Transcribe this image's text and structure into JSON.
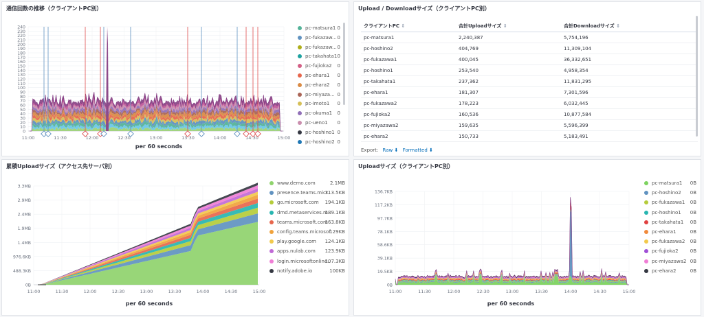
{
  "panels": {
    "comm": {
      "title": "通信回数の推移（クライアントPC別）",
      "xlabel": "per 60 seconds",
      "yticks": [
        "0",
        "10",
        "20",
        "30",
        "40",
        "50",
        "60",
        "70",
        "80",
        "90",
        "100",
        "110",
        "120",
        "130",
        "140",
        "150",
        "160",
        "170",
        "180",
        "190",
        "200",
        "210",
        "220",
        "230",
        "240"
      ],
      "xticks": [
        "11:00",
        "11:30",
        "12:00",
        "12:30",
        "13:00",
        "13:30",
        "14:00",
        "14:30",
        "15:00"
      ],
      "legend": [
        {
          "name": "pc-matsura1",
          "value": "0",
          "color": "#54b399"
        },
        {
          "name": "pc-fukazaw...",
          "value": "0",
          "color": "#6092c0"
        },
        {
          "name": "pc-fukazaw...",
          "value": "0",
          "color": "#aeae19"
        },
        {
          "name": "pc-takahata1",
          "value": "0",
          "color": "#1ea2a0"
        },
        {
          "name": "pc-fujioka2",
          "value": "0",
          "color": "#d36086"
        },
        {
          "name": "pc-ehara1",
          "value": "0",
          "color": "#e7664c"
        },
        {
          "name": "pc-ehara2",
          "value": "0",
          "color": "#da8b45"
        },
        {
          "name": "pc-miyaza...",
          "value": "0",
          "color": "#aa6556"
        },
        {
          "name": "pc-imoto1",
          "value": "0",
          "color": "#d6bf57"
        },
        {
          "name": "pc-okuma1",
          "value": "0",
          "color": "#9170b8"
        },
        {
          "name": "pc-ueno1",
          "value": "0",
          "color": "#ca8eae"
        },
        {
          "name": "pc-hoshino1",
          "value": "0",
          "color": "#343741"
        },
        {
          "name": "pc-hoshino2",
          "value": "0",
          "color": "#1f77b4"
        }
      ]
    },
    "updown": {
      "title": "Upload / Downloadサイズ（クライアントPC別）",
      "columns": [
        "クライアントPC",
        "合計Uploadサイズ",
        "合計Downloadサイズ"
      ],
      "rows": [
        [
          "pc-matsura1",
          "2,240,387",
          "5,754,196"
        ],
        [
          "pc-hoshino2",
          "404,769",
          "11,309,104"
        ],
        [
          "pc-fukazawa1",
          "400,045",
          "36,332,651"
        ],
        [
          "pc-hoshino1",
          "253,540",
          "4,958,354"
        ],
        [
          "pc-takahata1",
          "237,362",
          "11,831,295"
        ],
        [
          "pc-ehara1",
          "181,307",
          "7,301,596"
        ],
        [
          "pc-fukazawa2",
          "178,223",
          "6,032,445"
        ],
        [
          "pc-fujioka2",
          "160,536",
          "10,877,584"
        ],
        [
          "pc-miyazawa2",
          "159,635",
          "5,596,399"
        ],
        [
          "pc-ehara2",
          "150,733",
          "5,183,491"
        ]
      ],
      "export_label": "Export:",
      "raw_label": "Raw",
      "formatted_label": "Formatted"
    },
    "cumul": {
      "title": "累積Uploadサイズ（アクセス先サーバ別）",
      "xlabel": "per 60 seconds",
      "yticks": [
        "0B",
        "488.3KB",
        "976.6KB",
        "1.4MB",
        "1.9MB",
        "2.4MB",
        "2.9MB",
        "3.3MB"
      ],
      "xticks": [
        "11:00",
        "11:30",
        "12:00",
        "12:30",
        "13:00",
        "13:30",
        "14:00",
        "14:30",
        "15:00"
      ],
      "legend": [
        {
          "name": "www.demo.com",
          "value": "2.1MB",
          "color": "#8fd36c"
        },
        {
          "name": "presence.teams.micr...",
          "value": "313.5KB",
          "color": "#6092c0"
        },
        {
          "name": "go.microsoft.com",
          "value": "194.1KB",
          "color": "#b5cc3a"
        },
        {
          "name": "dmd.metaservices.m...",
          "value": "189.1KB",
          "color": "#27b5b0"
        },
        {
          "name": "teams.microsoft.com",
          "value": "163.8KB",
          "color": "#e7664c"
        },
        {
          "name": "config.teams.microsoft...",
          "value": "129KB",
          "color": "#f0a23c"
        },
        {
          "name": "play.google.com",
          "value": "124.1KB",
          "color": "#f2c94c"
        },
        {
          "name": "apps.nulab.com",
          "value": "123.9KB",
          "color": "#c06ad6"
        },
        {
          "name": "login.microsoftonline...",
          "value": "107.3KB",
          "color": "#f07ed6"
        },
        {
          "name": "notify.adobe.io",
          "value": "100KB",
          "color": "#343741"
        }
      ]
    },
    "upload": {
      "title": "Uploadサイズ（クライアントPC別）",
      "xlabel": "per 60 seconds",
      "yticks": [
        "0B",
        "19.5KB",
        "39.1KB",
        "58.6KB",
        "78.1KB",
        "97.7KB",
        "117.2KB",
        "136.7KB"
      ],
      "xticks": [
        "11:00",
        "11:30",
        "12:00",
        "12:30",
        "13:00",
        "13:30",
        "14:00",
        "14:30",
        "15:00"
      ],
      "legend": [
        {
          "name": "pc-matsura1",
          "value": "0B",
          "color": "#7dd35f"
        },
        {
          "name": "pc-hoshino2",
          "value": "0B",
          "color": "#6092c0"
        },
        {
          "name": "pc-fukazawa1",
          "value": "0B",
          "color": "#b5cc3a"
        },
        {
          "name": "pc-hoshino1",
          "value": "0B",
          "color": "#27b5b0"
        },
        {
          "name": "pc-takahata1",
          "value": "0B",
          "color": "#e04040"
        },
        {
          "name": "pc-ehara1",
          "value": "0B",
          "color": "#f08a3c"
        },
        {
          "name": "pc-fukazawa2",
          "value": "0B",
          "color": "#f2c94c"
        },
        {
          "name": "pc-fujioka2",
          "value": "0B",
          "color": "#a04fd6"
        },
        {
          "name": "pc-miyazawa2",
          "value": "0B",
          "color": "#f07ed6"
        },
        {
          "name": "pc-ehara2",
          "value": "0B",
          "color": "#343741"
        }
      ]
    }
  }
}
